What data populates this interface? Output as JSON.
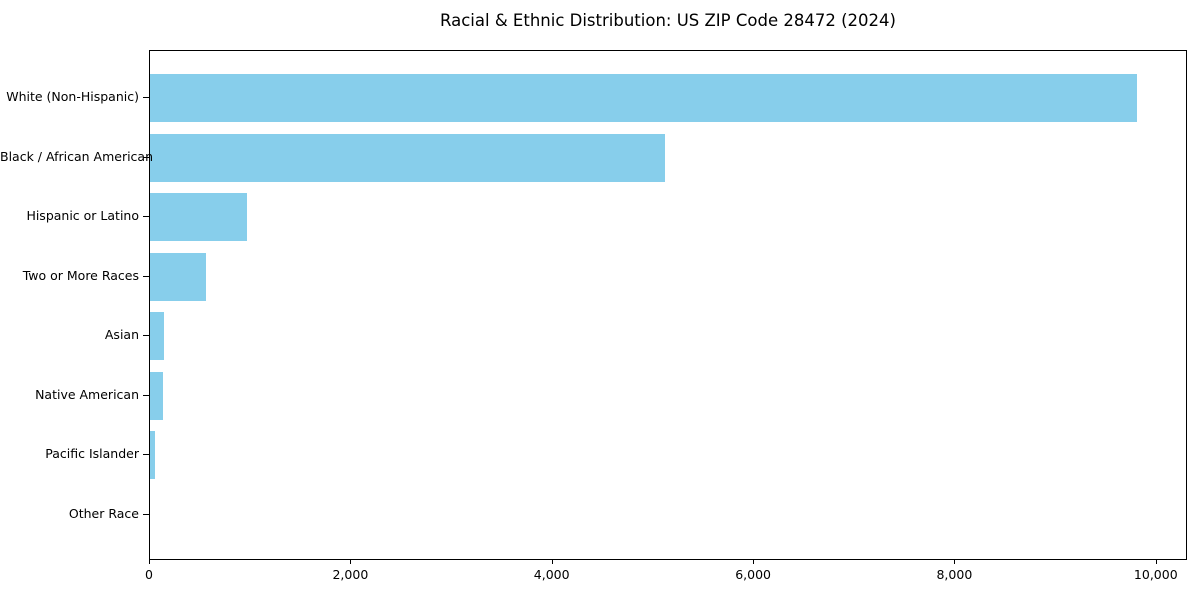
{
  "chart_data": {
    "type": "bar",
    "orientation": "horizontal",
    "title": "Racial & Ethnic Distribution: US ZIP Code 28472 (2024)",
    "categories": [
      "White (Non-Hispanic)",
      "Black / African American",
      "Hispanic or Latino",
      "Two or More Races",
      "Asian",
      "Native American",
      "Pacific Islander",
      "Other Race"
    ],
    "values": [
      9800,
      5115,
      960,
      560,
      140,
      130,
      45,
      0
    ],
    "xlabel": "",
    "ylabel": "",
    "xlim": [
      0,
      10310
    ],
    "x_ticks": [
      0,
      2000,
      4000,
      6000,
      8000,
      10000
    ],
    "x_tick_labels": [
      "0",
      "2,000",
      "4,000",
      "6,000",
      "8,000",
      "10,000"
    ],
    "bar_color": "#87CEEB",
    "background_color": "#ffffff",
    "axis_color": "#000000",
    "text_color": "#000000",
    "grid": false,
    "legend": null
  }
}
